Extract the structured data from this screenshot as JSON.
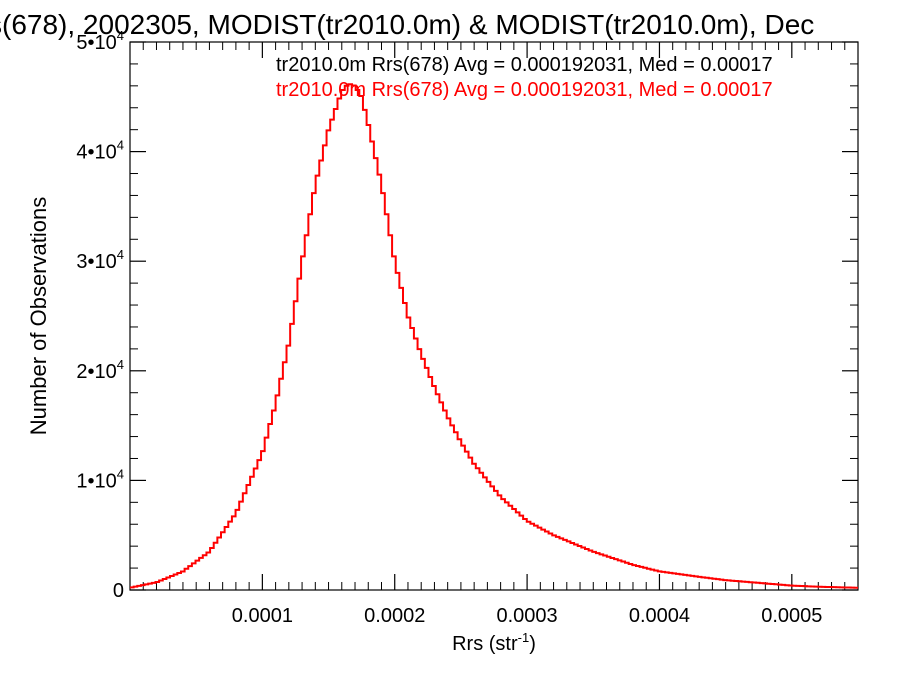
{
  "chart_data": {
    "type": "line",
    "title": "s(678), 2002305, MODIST(tr2010.0m) & MODIST(tr2010.0m), Dec",
    "xlabel": "Rrs (str",
    "xlabel_sup": "-1",
    "xlabel_close": ")",
    "ylabel": "Number of Observations",
    "xlim": [
      0,
      0.00055
    ],
    "ylim": [
      0,
      50000
    ],
    "x_ticks": [
      {
        "value": 0.0001,
        "label": "0.0001"
      },
      {
        "value": 0.0002,
        "label": "0.0002"
      },
      {
        "value": 0.0003,
        "label": "0.0003"
      },
      {
        "value": 0.0004,
        "label": "0.0004"
      },
      {
        "value": 0.0005,
        "label": "0.0005"
      }
    ],
    "y_ticks": [
      {
        "value": 0,
        "base": "0",
        "exp": ""
      },
      {
        "value": 10000,
        "base": "1•10",
        "exp": "4"
      },
      {
        "value": 20000,
        "base": "2•10",
        "exp": "4"
      },
      {
        "value": 30000,
        "base": "3•10",
        "exp": "4"
      },
      {
        "value": 40000,
        "base": "4•10",
        "exp": "4"
      },
      {
        "value": 50000,
        "base": "5•10",
        "exp": "4"
      }
    ],
    "annotations": [
      {
        "text": "tr2010.0m Rrs(678) Avg = 0.000192031, Med = 0.00017",
        "color": "#000000"
      },
      {
        "text": "tr2010.0m Rrs(678) Avg = 0.000192031, Med = 0.00017",
        "color": "#ff0000"
      }
    ],
    "series": [
      {
        "color": "#ff0000",
        "x": [
          0.0,
          2e-05,
          4e-05,
          6e-05,
          8e-05,
          0.0001,
          0.00011,
          0.00012,
          0.00013,
          0.00014,
          0.00015,
          0.00016,
          0.000165,
          0.00017,
          0.000175,
          0.00018,
          0.00019,
          0.0002,
          0.00021,
          0.00022,
          0.00023,
          0.00024,
          0.00025,
          0.00026,
          0.00028,
          0.0003,
          0.00032,
          0.00035,
          0.00038,
          0.0004,
          0.00043,
          0.00045,
          0.00048,
          0.0005,
          0.00052,
          0.00055
        ],
        "y": [
          200,
          700,
          1700,
          3500,
          7000,
          12500,
          17000,
          22500,
          30000,
          37000,
          42000,
          45500,
          46200,
          46000,
          45000,
          42500,
          37000,
          30000,
          25000,
          21500,
          18500,
          15800,
          13500,
          11500,
          8500,
          6300,
          5000,
          3500,
          2300,
          1700,
          1200,
          900,
          600,
          400,
          300,
          200
        ]
      }
    ]
  }
}
